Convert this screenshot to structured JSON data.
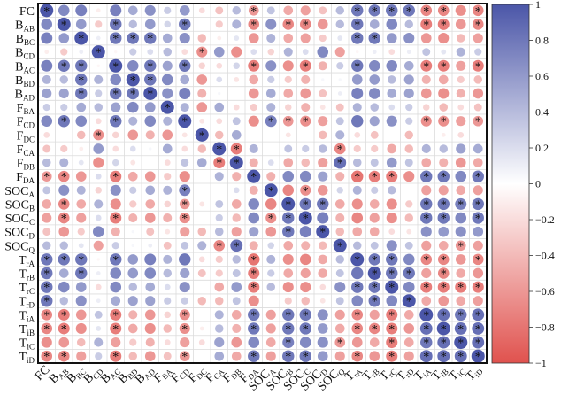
{
  "chart_data": {
    "type": "heatmap",
    "subtype": "correlation-circle-matrix",
    "variables": [
      {
        "main": "FC",
        "sub": ""
      },
      {
        "main": "B",
        "sub": "AB"
      },
      {
        "main": "B",
        "sub": "BC"
      },
      {
        "main": "B",
        "sub": "CD"
      },
      {
        "main": "B",
        "sub": "AC"
      },
      {
        "main": "B",
        "sub": "BD"
      },
      {
        "main": "B",
        "sub": "AD"
      },
      {
        "main": "F",
        "sub": "BA"
      },
      {
        "main": "F",
        "sub": "CD"
      },
      {
        "main": "F",
        "sub": "DC"
      },
      {
        "main": "F",
        "sub": "CA"
      },
      {
        "main": "F",
        "sub": "DB"
      },
      {
        "main": "F",
        "sub": "DA"
      },
      {
        "main": "SOC",
        "sub": "A"
      },
      {
        "main": "SOC",
        "sub": "B"
      },
      {
        "main": "SOC",
        "sub": "C"
      },
      {
        "main": "SOC",
        "sub": "D"
      },
      {
        "main": "SOC",
        "sub": "Q"
      },
      {
        "main": "T",
        "sub": "rA"
      },
      {
        "main": "T",
        "sub": "rB"
      },
      {
        "main": "T",
        "sub": "rC"
      },
      {
        "main": "T",
        "sub": "rD"
      },
      {
        "main": "T",
        "sub": "iA"
      },
      {
        "main": "T",
        "sub": "iB"
      },
      {
        "main": "T",
        "sub": "iC"
      },
      {
        "main": "T",
        "sub": "iD"
      }
    ],
    "values": [
      [
        1,
        0.7,
        0.75,
        -0.1,
        0.75,
        0.5,
        0.65,
        0.3,
        0.6,
        -0.2,
        -0.35,
        0.4,
        -0.6,
        0.35,
        -0.5,
        -0.55,
        -0.35,
        0.4,
        0.8,
        0.8,
        0.8,
        0.8,
        -0.7,
        -0.7,
        -0.65,
        -0.7
      ],
      [
        0.7,
        1,
        0.6,
        -0.3,
        0.8,
        0.4,
        0.6,
        0.25,
        0.8,
        0,
        -0.3,
        0.45,
        -0.7,
        0.65,
        -0.7,
        -0.7,
        -0.6,
        0.4,
        0.8,
        0.5,
        0.7,
        0.4,
        -0.75,
        -0.75,
        -0.6,
        -0.7
      ],
      [
        0.75,
        0.6,
        1,
        0.1,
        0.8,
        0.8,
        0.8,
        0.5,
        0.65,
        -0.4,
        -0.1,
        0.15,
        -0.6,
        0.45,
        -0.5,
        -0.55,
        -0.3,
        0.15,
        0.8,
        0.8,
        0.6,
        0.65,
        -0.6,
        -0.65,
        -0.4,
        -0.55
      ],
      [
        -0.1,
        -0.3,
        0.1,
        1,
        -0.05,
        0.3,
        0.2,
        0.4,
        -0.2,
        -0.65,
        0.6,
        -0.65,
        0.2,
        -0.25,
        0.45,
        0.2,
        0.7,
        -0.55,
        -0.05,
        0.1,
        -0.2,
        0.1,
        0.35,
        0.15,
        0.45,
        0.3
      ],
      [
        0.75,
        0.8,
        0.8,
        -0.05,
        1,
        0.7,
        0.8,
        0.55,
        0.8,
        -0.25,
        -0.2,
        0.25,
        -0.75,
        0.65,
        -0.65,
        -0.75,
        -0.45,
        0.3,
        0.8,
        0.7,
        0.7,
        0.5,
        -0.75,
        -0.75,
        -0.55,
        -0.75
      ],
      [
        0.45,
        0.4,
        0.8,
        0.45,
        0.7,
        1,
        0.8,
        0.7,
        0.5,
        -0.6,
        0.2,
        -0.15,
        -0.5,
        0.3,
        -0.3,
        -0.45,
        0.05,
        0.05,
        0.6,
        0.6,
        0.4,
        0.55,
        -0.45,
        -0.5,
        -0.3,
        -0.4
      ],
      [
        0.55,
        0.55,
        0.8,
        0.3,
        0.8,
        0.8,
        1,
        0.65,
        0.75,
        -0.45,
        0.05,
        0,
        -0.6,
        0.5,
        -0.5,
        -0.6,
        -0.35,
        0.1,
        0.75,
        0.7,
        0.5,
        0.55,
        -0.6,
        -0.65,
        -0.45,
        -0.6
      ],
      [
        0.3,
        0.3,
        0.5,
        0.4,
        0.55,
        0.7,
        0.6,
        1,
        0.45,
        -0.6,
        0.5,
        -0.2,
        -0.3,
        0.45,
        -0.25,
        -0.45,
        -0.15,
        -0.35,
        0.45,
        0.4,
        0.2,
        0.3,
        -0.25,
        -0.4,
        -0.2,
        -0.35
      ],
      [
        0.7,
        0.8,
        0.7,
        -0.2,
        0.8,
        0.45,
        0.7,
        0.45,
        1,
        -0.15,
        -0.2,
        0.35,
        -0.65,
        0.75,
        -0.6,
        -0.65,
        -0.55,
        0.35,
        0.8,
        0.55,
        0.65,
        0.3,
        -0.65,
        -0.65,
        -0.55,
        -0.6
      ],
      [
        -0.2,
        0,
        -0.4,
        -0.65,
        -0.25,
        -0.6,
        -0.45,
        -0.6,
        -0.15,
        1,
        -0.4,
        0.5,
        0,
        0,
        -0.15,
        0,
        -0.4,
        0.45,
        -0.2,
        -0.35,
        0,
        -0.4,
        0,
        -0.1,
        -0.2,
        0
      ],
      [
        -0.35,
        -0.3,
        -0.1,
        0.6,
        -0.2,
        0.2,
        0.05,
        0.5,
        -0.2,
        -0.4,
        1,
        -0.75,
        0.45,
        0,
        0.35,
        0.3,
        0.4,
        -0.7,
        -0.3,
        -0.3,
        -0.5,
        -0.4,
        0.45,
        0.4,
        0.55,
        0.5
      ],
      [
        0.4,
        0.45,
        0.15,
        -0.65,
        0.25,
        -0.15,
        0,
        -0.2,
        0.35,
        0.5,
        -0.75,
        1,
        -0.45,
        0.2,
        -0.5,
        -0.4,
        -0.55,
        0.85,
        0.4,
        0.35,
        0.6,
        0.35,
        -0.5,
        -0.45,
        -0.6,
        -0.5
      ],
      [
        -0.6,
        -0.7,
        -0.6,
        0.2,
        -0.75,
        -0.5,
        -0.6,
        -0.3,
        -0.65,
        0,
        0.45,
        -0.45,
        1,
        -0.45,
        0.7,
        0.7,
        0.55,
        -0.45,
        -0.8,
        -0.75,
        -0.75,
        -0.65,
        0.8,
        0.8,
        0.7,
        0.8
      ],
      [
        0.35,
        0.65,
        0.45,
        -0.25,
        0.65,
        0.3,
        0.5,
        0.45,
        0.75,
        0,
        0,
        0.2,
        -0.45,
        1,
        -0.7,
        -0.65,
        -0.6,
        0.25,
        0.45,
        0.3,
        0.4,
        0,
        -0.55,
        -0.55,
        -0.5,
        -0.55
      ],
      [
        -0.5,
        -0.7,
        -0.5,
        0.45,
        -0.65,
        -0.3,
        -0.5,
        -0.25,
        -0.6,
        -0.15,
        0.35,
        -0.5,
        0.7,
        -0.7,
        1,
        0.8,
        0.8,
        -0.5,
        -0.65,
        -0.5,
        -0.65,
        -0.3,
        0.8,
        0.8,
        0.75,
        0.8
      ],
      [
        -0.55,
        -0.7,
        -0.55,
        0.2,
        -0.75,
        -0.45,
        -0.6,
        -0.45,
        -0.65,
        0,
        0.3,
        -0.4,
        0.7,
        -0.65,
        0.8,
        1,
        0.75,
        -0.45,
        -0.7,
        -0.55,
        -0.65,
        -0.4,
        0.8,
        0.8,
        0.7,
        0.8
      ],
      [
        -0.35,
        -0.6,
        -0.3,
        0.7,
        -0.45,
        0.05,
        -0.35,
        -0.15,
        -0.55,
        -0.4,
        0.4,
        -0.55,
        0.55,
        -0.6,
        0.8,
        0.75,
        1,
        -0.4,
        -0.5,
        -0.5,
        -0.2,
        -0.15,
        0.65,
        0.6,
        0.65,
        0.6
      ],
      [
        0.4,
        0.4,
        0.15,
        -0.55,
        0.3,
        0.05,
        0.1,
        -0.35,
        0.35,
        0.45,
        -0.7,
        0.85,
        -0.45,
        0.25,
        -0.5,
        -0.45,
        -0.4,
        1,
        0.4,
        0.35,
        0.65,
        0.35,
        -0.55,
        -0.5,
        -0.6,
        -0.55
      ],
      [
        0.8,
        0.8,
        0.8,
        -0.05,
        0.8,
        0.6,
        0.75,
        0.45,
        0.8,
        -0.2,
        -0.3,
        0.4,
        -0.8,
        0.45,
        -0.65,
        -0.7,
        -0.5,
        0.4,
        1,
        0.8,
        0.8,
        0.7,
        -0.7,
        -0.7,
        -0.6,
        -0.7
      ],
      [
        0.8,
        0.5,
        0.8,
        0.1,
        0.7,
        0.6,
        0.7,
        0.4,
        0.55,
        -0.35,
        -0.3,
        0.35,
        -0.75,
        0.3,
        -0.5,
        -0.55,
        -0.5,
        0.35,
        0.8,
        1,
        0.8,
        0.8,
        -0.55,
        -0.7,
        -0.5,
        -0.6
      ],
      [
        0.8,
        0.7,
        0.6,
        -0.2,
        0.7,
        0.4,
        0.5,
        0.2,
        0.65,
        0,
        -0.5,
        0.6,
        -0.75,
        0.4,
        -0.65,
        -0.65,
        -0.2,
        0.65,
        0.8,
        0.8,
        1,
        0.7,
        -0.75,
        -0.75,
        -0.75,
        -0.75
      ],
      [
        0.8,
        0.4,
        0.65,
        0.1,
        0.5,
        0.55,
        0.55,
        0.3,
        0.3,
        -0.4,
        -0.4,
        0.35,
        -0.65,
        0,
        -0.3,
        -0.4,
        -0.15,
        0.35,
        0.7,
        0.8,
        0.7,
        1,
        -0.5,
        -0.6,
        -0.5,
        -0.55
      ],
      [
        -0.7,
        -0.75,
        -0.6,
        0.35,
        -0.75,
        -0.45,
        -0.6,
        -0.25,
        -0.65,
        0,
        0.45,
        -0.5,
        0.8,
        -0.55,
        0.8,
        0.8,
        0.65,
        -0.55,
        -0.7,
        -0.55,
        -0.75,
        -0.5,
        1,
        0.85,
        0.8,
        0.85
      ],
      [
        -0.7,
        -0.75,
        -0.65,
        0.15,
        -0.75,
        -0.5,
        -0.65,
        -0.4,
        -0.65,
        -0.1,
        0.4,
        -0.45,
        0.8,
        -0.55,
        0.8,
        0.8,
        0.6,
        -0.5,
        -0.7,
        -0.7,
        -0.75,
        -0.6,
        0.85,
        1,
        0.85,
        0.85
      ],
      [
        -0.65,
        -0.6,
        -0.4,
        0.45,
        -0.55,
        -0.3,
        -0.45,
        -0.2,
        -0.55,
        -0.2,
        0.55,
        -0.6,
        0.7,
        -0.5,
        0.75,
        0.7,
        0.65,
        -0.6,
        -0.6,
        -0.5,
        -0.75,
        -0.5,
        0.8,
        0.85,
        1,
        0.85
      ],
      [
        -0.7,
        -0.7,
        -0.55,
        0.3,
        -0.75,
        -0.4,
        -0.6,
        -0.35,
        -0.6,
        0,
        0.5,
        -0.5,
        0.8,
        -0.55,
        0.8,
        0.8,
        0.6,
        -0.55,
        -0.7,
        -0.6,
        -0.75,
        -0.55,
        0.85,
        0.85,
        0.85,
        1
      ]
    ],
    "significant": [
      "10000000000010000011111101",
      "01001000100010110010001101",
      "00101110000000000011000000",
      "00010000010000000000000000",
      "01101010100010010010001101",
      "00100110000000000000000000",
      "00101110000000000000000000",
      "00000001000000000000000000",
      "01001000100001110000001101",
      "00010000010000000000000000",
      "00000000001100000100000000",
      "00000000001100000100000000",
      "11001000000010000011101101",
      "00000000100001010000000000",
      "01000000100000111000001111",
      "01001000100001110000001101",
      "00000000000000101000000000",
      "00000000001100000100000010",
      "11101000000010000011101101",
      "10100000000010000001110100",
      "10000000000010000011101111",
      "10000000000000000001010000",
      "11001000100010110010101111",
      "11001000100010110011101111",
      "00000000000000100100101111",
      "11001000100010110010101111"
    ],
    "significance_marker": "*",
    "colorbar": {
      "range": [
        -1,
        1
      ],
      "ticks": [
        "1",
        "0.8",
        "0.6",
        "0.4",
        "0.2",
        "0",
        "−0.2",
        "−0.4",
        "−0.6",
        "−0.8",
        "−1"
      ],
      "placement": "right"
    },
    "colors": {
      "positive": "#4b56a8",
      "negative": "#e0524e",
      "neutral": "#ffffff"
    },
    "grid": true
  }
}
